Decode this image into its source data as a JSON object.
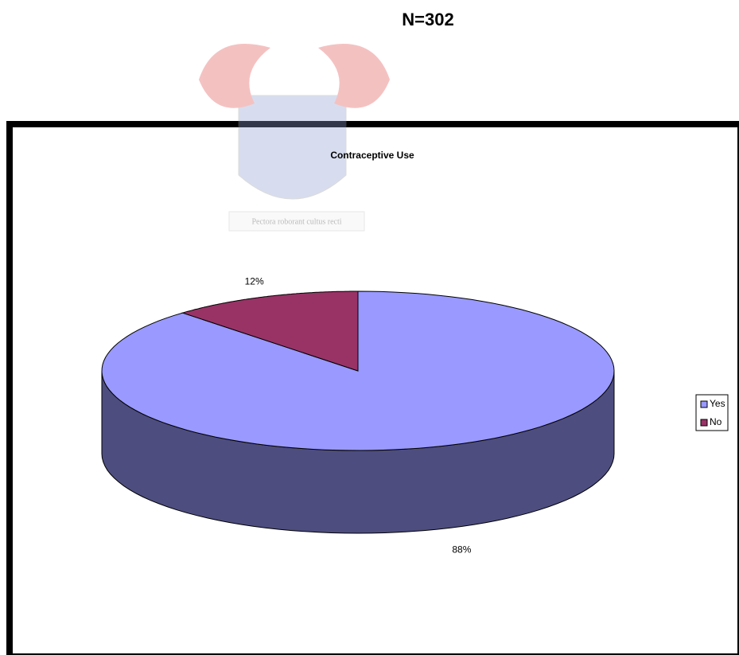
{
  "chart_data": {
    "type": "pie",
    "title": "Contraceptive Use",
    "subtitle": "N=302",
    "watermark": "Pectora roborant cultus recti",
    "categories": [
      "Yes",
      "No"
    ],
    "values": [
      88,
      12
    ],
    "value_labels": [
      "88%",
      "12%"
    ],
    "colors": [
      "#9999ff",
      "#993366"
    ],
    "legend": "right"
  }
}
